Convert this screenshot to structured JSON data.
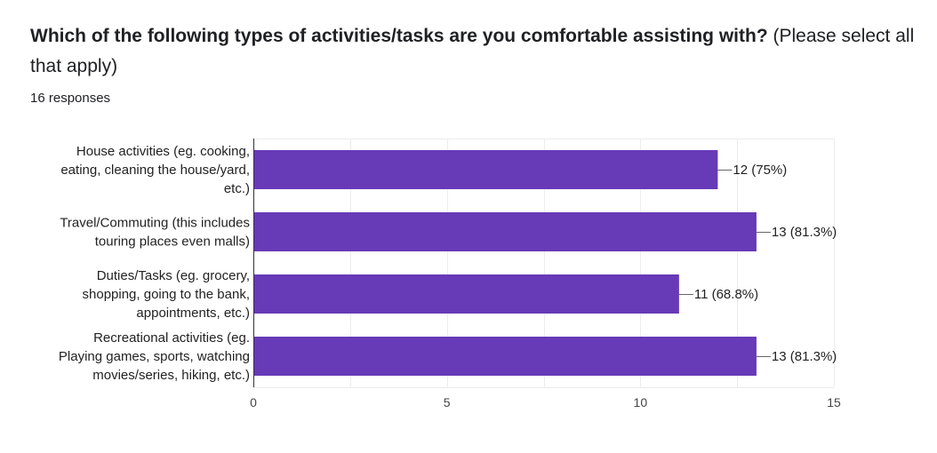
{
  "question": {
    "title_bold": "Which of the following types of activities/tasks are you comfortable assisting with?",
    "title_normal": "(Please select all that apply)",
    "responses": "16 responses"
  },
  "colors": {
    "bar": "#673ab7",
    "grid": "#ececec",
    "axis": "#333333",
    "leader": "#666666"
  },
  "chart_data": {
    "type": "bar",
    "orientation": "horizontal",
    "categories": [
      [
        "House activities (eg. cooking,",
        "eating, cleaning the house/yard,",
        "etc.)"
      ],
      [
        "Travel/Commuting (this includes",
        "touring places even malls)"
      ],
      [
        "Duties/Tasks (eg. grocery,",
        "shopping, going to the bank,",
        "appointments, etc.)"
      ],
      [
        "Recreational activities (eg.",
        "Playing games, sports, watching",
        "movies/series, hiking, etc.)"
      ]
    ],
    "values": [
      12,
      13,
      11,
      13
    ],
    "data_labels": [
      "12 (75%)",
      "13 (81.3%)",
      "11 (68.8%)",
      "13 (81.3%)"
    ],
    "xlim": [
      0,
      15
    ],
    "xticks": [
      0,
      5,
      10,
      15
    ],
    "grid": true,
    "legend": "none"
  }
}
